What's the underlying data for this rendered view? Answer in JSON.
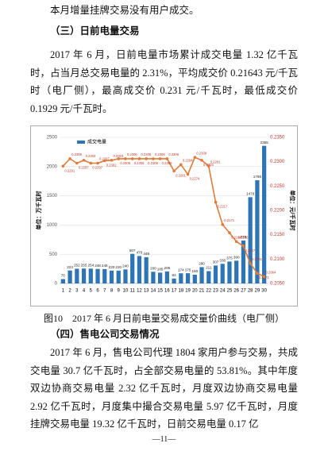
{
  "document": {
    "p1": "本月增量挂牌交易没有用户成交。",
    "h1": "（三）日前电量交易",
    "p2": "2017 年 6 月，日前电量市场累计成交电量 1.32 亿千瓦时，占当月总交易电量的 2.31%，平均成交价 0.21643 元/千瓦时（电厂侧），最高成交价 0.231 元/千瓦时，最低成交价 0.1929 元/千瓦时。",
    "caption": "图10　2017 年 6 月日前电量交易成交量价曲线（电厂侧）",
    "h2": "（四）售电公司交易情况",
    "p3": "2017 年 6 月，售电公司代理 1804 家用户参与交易，共成交电量 30.7 亿千瓦时，占全部交易电量的 53.81%。其中年度双边协商交易电量 2.32 亿千瓦时，月度双边协商交易电量 2.92 亿千瓦时，月度集中撮合交易电量 5.97 亿千瓦时，月度挂牌交易电量 19.32 亿千瓦时，日前交易电量 0.17 亿",
    "footer": "—11—"
  },
  "chart_data": {
    "type": "bar-line",
    "ylabel": "单位：万千瓦时",
    "y2label": "单位：元/千瓦时",
    "categories": [
      "1",
      "2",
      "3",
      "4",
      "5",
      "6",
      "7",
      "8",
      "9",
      "10",
      "11",
      "12",
      "13",
      "14",
      "15",
      "16",
      "17",
      "18",
      "19",
      "20",
      "21",
      "22",
      "23",
      "24",
      "25",
      "26",
      "27",
      "28",
      "29",
      "30"
    ],
    "series": [
      {
        "name": "成交电量",
        "color": "#2e75b6",
        "values": [
          75,
          223,
          252,
          255,
          254,
          248,
          246,
          220,
          220,
          240,
          507,
          470,
          449,
          200,
          185,
          206,
          84,
          174,
          175,
          150,
          280,
          211,
          307,
          336,
          375,
          390,
          735,
          1476,
          1766,
          2355
        ]
      },
      {
        "color": "#e07b39",
        "axis": "y2",
        "values": [
          0.2291,
          0.2306,
          0.2297,
          0.2303,
          0.2297,
          0.2297,
          0.2302,
          0.2303,
          0.2306,
          0.2306,
          0.2306,
          0.2306,
          0.2306,
          0.2306,
          0.2306,
          0.2306,
          0.2281,
          0.2294,
          0.2274,
          0.2309,
          0.2303,
          0.2291,
          0.2217,
          0.2171,
          0.2154,
          0.2136,
          0.2127,
          0.2091,
          0.2071,
          0.2064
        ]
      }
    ],
    "ylim": [
      0,
      2500
    ],
    "yticks": [
      0,
      500,
      1000,
      1500,
      2000,
      2500
    ],
    "y2lim": [
      0.205,
      0.235
    ],
    "y2ticks": [
      {
        "value": 0.205,
        "label": "0.2050"
      },
      {
        "value": 0.21,
        "label": "0.2100"
      },
      {
        "value": 0.215,
        "label": "0.2150"
      },
      {
        "value": 0.22,
        "label": "0.2200"
      },
      {
        "value": 0.225,
        "label": "0.2250"
      },
      {
        "value": 0.23,
        "label": "0.2300"
      },
      {
        "value": 0.235,
        "label": "0.2350"
      }
    ],
    "grid": true,
    "legend": "top-left"
  }
}
